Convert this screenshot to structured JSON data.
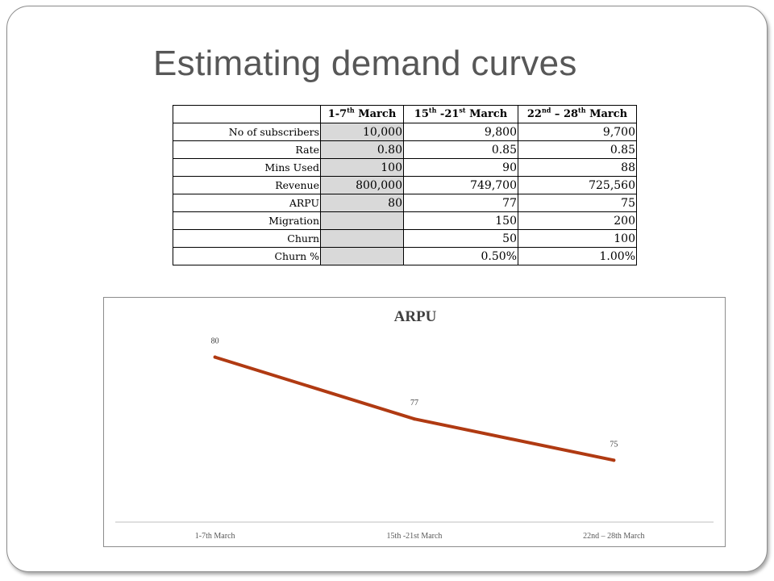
{
  "slide": {
    "title": "Estimating demand curves"
  },
  "table": {
    "headers": [
      {
        "base": "1-7",
        "sup": "th",
        "tail": " March"
      },
      {
        "base": "15",
        "sup": "th",
        "mid": " -21",
        "sup2": "st",
        "tail": " March"
      },
      {
        "base": "22",
        "sup": "nd",
        "mid": " – 28",
        "sup2": "th",
        "tail": " March"
      }
    ],
    "rows": [
      {
        "label": "No of subscribers",
        "values": [
          "10,000",
          "9,800",
          "9,700"
        ]
      },
      {
        "label": "Rate",
        "values": [
          "0.80",
          "0.85",
          "0.85"
        ]
      },
      {
        "label": "Mins Used",
        "values": [
          "100",
          "90",
          "88"
        ]
      },
      {
        "label": "Revenue",
        "values": [
          "800,000",
          "749,700",
          "725,560"
        ]
      },
      {
        "label": "ARPU",
        "values": [
          "80",
          "77",
          "75"
        ]
      },
      {
        "label": "Migration",
        "values": [
          "",
          "150",
          "200"
        ]
      },
      {
        "label": "Churn",
        "values": [
          "",
          "50",
          "100"
        ]
      },
      {
        "label": "Churn %",
        "values": [
          "",
          "0.50%",
          "1.00%"
        ]
      }
    ]
  },
  "chart_data": {
    "type": "line",
    "title": "ARPU",
    "categories": [
      "1-7th March",
      "15th -21st March",
      "22nd – 28th March"
    ],
    "series": [
      {
        "values": [
          80,
          77,
          75
        ],
        "color": "#b03a12"
      }
    ],
    "data_labels": [
      "80",
      "77",
      "75"
    ],
    "ylim": [
      72,
      81
    ],
    "grid": false,
    "legend": "none"
  }
}
